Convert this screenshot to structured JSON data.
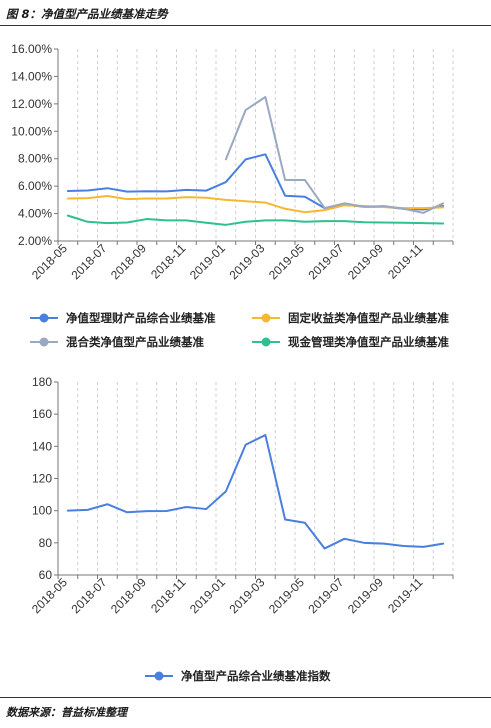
{
  "header": {
    "title": "图 8：净值型产品业绩基准走势"
  },
  "footer": {
    "source": "数据来源：普益标准整理"
  },
  "chart_data": [
    {
      "type": "line",
      "title": "",
      "xlabel": "",
      "ylabel": "",
      "x": [
        "2018-05",
        "2018-06",
        "2018-07",
        "2018-08",
        "2018-09",
        "2018-10",
        "2018-11",
        "2018-12",
        "2019-01",
        "2019-02",
        "2019-03",
        "2019-04",
        "2019-05",
        "2019-06",
        "2019-07",
        "2019-08",
        "2019-09",
        "2019-10",
        "2019-11",
        "2019-12"
      ],
      "x_tick_labels": [
        "2018-05",
        "2018-07",
        "2018-09",
        "2018-11",
        "2019-01",
        "2019-03",
        "2019-05",
        "2019-07",
        "2019-09",
        "2019-11"
      ],
      "ylim": [
        0.02,
        0.16
      ],
      "y_ticks": [
        "2.00%",
        "4.00%",
        "6.00%",
        "8.00%",
        "10.00%",
        "12.00%",
        "14.00%",
        "16.00%"
      ],
      "legend_position": "bottom",
      "grid": "vertical dashed",
      "series": [
        {
          "name": "净值型理财产品综合业绩基准",
          "color": "#4a7fe0",
          "values": [
            0.0565,
            0.0568,
            0.0585,
            0.056,
            0.0563,
            0.0562,
            0.0573,
            0.0567,
            0.063,
            0.0795,
            0.0832,
            0.053,
            0.0523,
            0.044,
            0.0465,
            0.045,
            0.045,
            0.0435,
            0.043,
            0.0455
          ]
        },
        {
          "name": "固定收益类净值型产品业绩基准",
          "color": "#f5b82e",
          "values": [
            0.051,
            0.0513,
            0.0528,
            0.0505,
            0.051,
            0.051,
            0.052,
            0.0515,
            0.05,
            0.049,
            0.048,
            0.0435,
            0.041,
            0.0425,
            0.046,
            0.0455,
            0.0448,
            0.044,
            0.044,
            0.0445
          ]
        },
        {
          "name": "混合类净值型产品业绩基准",
          "color": "#9aa8c2",
          "values": [
            null,
            null,
            null,
            null,
            null,
            null,
            null,
            null,
            0.0795,
            0.1155,
            0.125,
            0.0645,
            0.0645,
            0.044,
            0.0475,
            0.045,
            0.0455,
            0.0435,
            0.0405,
            0.0475
          ]
        },
        {
          "name": "现金管理类净值型产品业绩基准",
          "color": "#2ec08f",
          "values": [
            0.0385,
            0.034,
            0.033,
            0.0335,
            0.036,
            0.035,
            0.035,
            0.0333,
            0.0318,
            0.034,
            0.035,
            0.035,
            0.034,
            0.0345,
            0.0345,
            0.0337,
            0.0335,
            0.0333,
            0.033,
            0.0328
          ]
        }
      ]
    },
    {
      "type": "line",
      "title": "",
      "xlabel": "",
      "ylabel": "",
      "x": [
        "2018-05",
        "2018-06",
        "2018-07",
        "2018-08",
        "2018-09",
        "2018-10",
        "2018-11",
        "2018-12",
        "2019-01",
        "2019-02",
        "2019-03",
        "2019-04",
        "2019-05",
        "2019-06",
        "2019-07",
        "2019-08",
        "2019-09",
        "2019-10",
        "2019-11",
        "2019-12"
      ],
      "x_tick_labels": [
        "2018-05",
        "2018-07",
        "2018-09",
        "2018-11",
        "2019-01",
        "2019-03",
        "2019-05",
        "2019-07",
        "2019-09",
        "2019-11"
      ],
      "ylim": [
        60,
        180
      ],
      "y_ticks": [
        "60",
        "80",
        "100",
        "120",
        "140",
        "160",
        "180"
      ],
      "legend_position": "bottom",
      "grid": "vertical dashed",
      "series": [
        {
          "name": "净值型产品综合业绩基准指数",
          "color": "#4a7fe0",
          "values": [
            100,
            100.5,
            104,
            99,
            99.7,
            99.8,
            102.3,
            101,
            112,
            141,
            147,
            94.5,
            92.5,
            76.5,
            82.5,
            80,
            79.5,
            78,
            77.5,
            79.5
          ]
        }
      ]
    }
  ]
}
